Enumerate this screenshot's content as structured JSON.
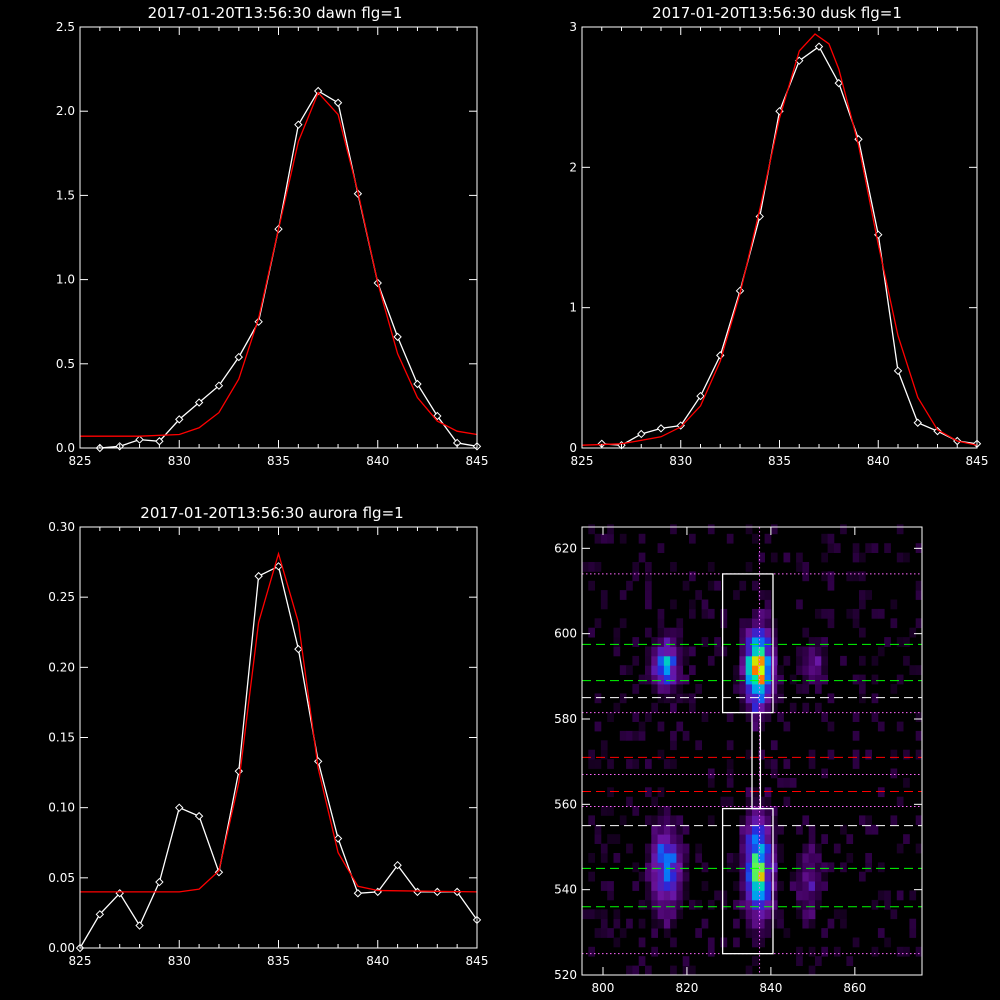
{
  "chart_data": [
    {
      "type": "line",
      "title": "2017-01-20T13:56:30 dawn flg=1",
      "xlim": [
        825,
        845
      ],
      "ylim": [
        0,
        2.5
      ],
      "xticks": [
        "825",
        "830",
        "835",
        "840",
        "845"
      ],
      "yticks": [
        "0.0",
        "0.5",
        "1.0",
        "1.5",
        "2.0",
        "2.5"
      ],
      "ytick_values": [
        0,
        0.5,
        1.0,
        1.5,
        2.0,
        2.5
      ],
      "series": [
        {
          "kind": "measured",
          "color": "#ffffff",
          "marker": "diamond",
          "x": [
            826,
            827,
            828,
            829,
            830,
            831,
            832,
            833,
            834,
            835,
            836,
            837,
            838,
            839,
            840,
            841,
            842,
            843,
            844,
            845
          ],
          "y": [
            0.0,
            0.01,
            0.05,
            0.04,
            0.17,
            0.27,
            0.37,
            0.54,
            0.75,
            1.3,
            1.92,
            2.12,
            2.05,
            1.51,
            0.98,
            0.66,
            0.38,
            0.19,
            0.03,
            0.01
          ]
        },
        {
          "kind": "fit",
          "color": "#ff0000",
          "x": [
            825,
            828,
            830,
            831,
            832,
            833,
            834,
            835,
            836,
            837,
            838,
            839,
            840,
            841,
            842,
            843,
            844,
            845
          ],
          "y": [
            0.07,
            0.07,
            0.08,
            0.12,
            0.21,
            0.41,
            0.77,
            1.3,
            1.82,
            2.11,
            1.98,
            1.52,
            0.98,
            0.56,
            0.3,
            0.16,
            0.1,
            0.08
          ]
        }
      ]
    },
    {
      "type": "line",
      "title": "2017-01-20T13:56:30 dusk flg=1",
      "xlim": [
        825,
        845
      ],
      "ylim": [
        0,
        3
      ],
      "xticks": [
        "825",
        "830",
        "835",
        "840",
        "845"
      ],
      "yticks": [
        "0",
        "1",
        "2",
        "3"
      ],
      "ytick_values": [
        0,
        1,
        2,
        3
      ],
      "series": [
        {
          "kind": "measured",
          "color": "#ffffff",
          "marker": "diamond",
          "x": [
            826,
            827,
            828,
            829,
            830,
            831,
            832,
            833,
            834,
            835,
            836,
            837,
            838,
            839,
            840,
            841,
            842,
            843,
            844,
            845
          ],
          "y": [
            0.03,
            0.02,
            0.1,
            0.14,
            0.16,
            0.37,
            0.66,
            1.12,
            1.65,
            2.4,
            2.76,
            2.86,
            2.6,
            2.2,
            1.52,
            0.55,
            0.18,
            0.12,
            0.05,
            0.03
          ]
        },
        {
          "kind": "fit",
          "color": "#ff0000",
          "x": [
            825,
            827,
            829,
            830,
            831,
            832,
            833,
            834,
            835,
            836,
            836.8,
            837.5,
            838,
            839,
            840,
            841,
            842,
            843,
            844,
            845
          ],
          "y": [
            0.02,
            0.03,
            0.08,
            0.15,
            0.3,
            0.62,
            1.1,
            1.7,
            2.35,
            2.83,
            2.95,
            2.88,
            2.7,
            2.16,
            1.45,
            0.8,
            0.36,
            0.13,
            0.05,
            0.02
          ]
        }
      ]
    },
    {
      "type": "line",
      "title": "2017-01-20T13:56:30 aurora flg=1",
      "xlim": [
        825,
        845
      ],
      "ylim": [
        0,
        0.3
      ],
      "xticks": [
        "825",
        "830",
        "835",
        "840",
        "845"
      ],
      "yticks": [
        "0.00",
        "0.05",
        "0.10",
        "0.15",
        "0.20",
        "0.25",
        "0.30"
      ],
      "ytick_values": [
        0,
        0.05,
        0.1,
        0.15,
        0.2,
        0.25,
        0.3
      ],
      "series": [
        {
          "kind": "measured",
          "color": "#ffffff",
          "marker": "diamond",
          "x": [
            825,
            826,
            827,
            828,
            829,
            830,
            831,
            832,
            833,
            834,
            835,
            836,
            837,
            838,
            839,
            840,
            841,
            842,
            843,
            844,
            845
          ],
          "y": [
            0.0,
            0.024,
            0.039,
            0.016,
            0.047,
            0.1,
            0.094,
            0.054,
            0.126,
            0.265,
            0.272,
            0.213,
            0.133,
            0.078,
            0.039,
            0.04,
            0.059,
            0.04,
            0.04,
            0.04,
            0.02
          ]
        },
        {
          "kind": "fit",
          "color": "#ff0000",
          "x": [
            825,
            830,
            831,
            832,
            833,
            834,
            835,
            836,
            837,
            838,
            839,
            840,
            845
          ],
          "y": [
            0.04,
            0.04,
            0.042,
            0.055,
            0.118,
            0.232,
            0.281,
            0.232,
            0.128,
            0.068,
            0.044,
            0.041,
            0.04
          ]
        }
      ]
    },
    {
      "type": "heatmap",
      "xlim": [
        795,
        876
      ],
      "ylim": [
        520,
        625
      ],
      "xticks": [
        "800",
        "820",
        "840",
        "860"
      ],
      "xtick_values": [
        800,
        820,
        840,
        860
      ],
      "yticks": [
        "520",
        "540",
        "560",
        "580",
        "600",
        "620"
      ],
      "ytick_values": [
        520,
        540,
        560,
        580,
        600,
        620
      ],
      "blobs": [
        {
          "x": 837,
          "y": 592,
          "sx": 2.2,
          "sy": 6,
          "amp": 1.0
        },
        {
          "x": 837,
          "y": 545,
          "sx": 2.3,
          "sy": 8,
          "amp": 0.75
        },
        {
          "x": 815,
          "y": 593,
          "sx": 2.2,
          "sy": 4,
          "amp": 0.55
        },
        {
          "x": 815,
          "y": 545,
          "sx": 2.4,
          "sy": 7,
          "amp": 0.5
        },
        {
          "x": 850,
          "y": 593,
          "sx": 2.0,
          "sy": 3.5,
          "amp": 0.25
        },
        {
          "x": 849,
          "y": 542,
          "sx": 2.2,
          "sy": 6,
          "amp": 0.22
        }
      ],
      "boxes": [
        {
          "x0": 828.5,
          "x1": 840.5,
          "y0": 581.5,
          "y1": 614,
          "color": "#ffffff"
        },
        {
          "x0": 828.5,
          "x1": 840.5,
          "y0": 525,
          "y1": 559,
          "color": "#ffffff"
        },
        {
          "x0": 835.5,
          "x1": 837.5,
          "y0": 559,
          "y1": 581.5,
          "color": "#ffffff"
        }
      ],
      "vline": {
        "x": 837.3,
        "color": "#ff66ff"
      },
      "hlines": [
        {
          "y": 614,
          "color": "#ff66ff",
          "style": "dotted"
        },
        {
          "y": 597.5,
          "color": "#00ff00",
          "style": "dashed"
        },
        {
          "y": 589,
          "color": "#00ff00",
          "style": "dashed"
        },
        {
          "y": 585,
          "color": "#ffffff",
          "style": "dashed"
        },
        {
          "y": 581.5,
          "color": "#ff66ff",
          "style": "dotted"
        },
        {
          "y": 571,
          "color": "#ff0000",
          "style": "dashed"
        },
        {
          "y": 567,
          "color": "#ff66ff",
          "style": "dotted"
        },
        {
          "y": 563,
          "color": "#ff0000",
          "style": "dashed"
        },
        {
          "y": 559.5,
          "color": "#ff66ff",
          "style": "dotted"
        },
        {
          "y": 555,
          "color": "#ffffff",
          "style": "dashed"
        },
        {
          "y": 545,
          "color": "#00ff00",
          "style": "dashed"
        },
        {
          "y": 536,
          "color": "#00ff00",
          "style": "dashed"
        },
        {
          "y": 525,
          "color": "#ff66ff",
          "style": "dotted"
        }
      ]
    }
  ]
}
